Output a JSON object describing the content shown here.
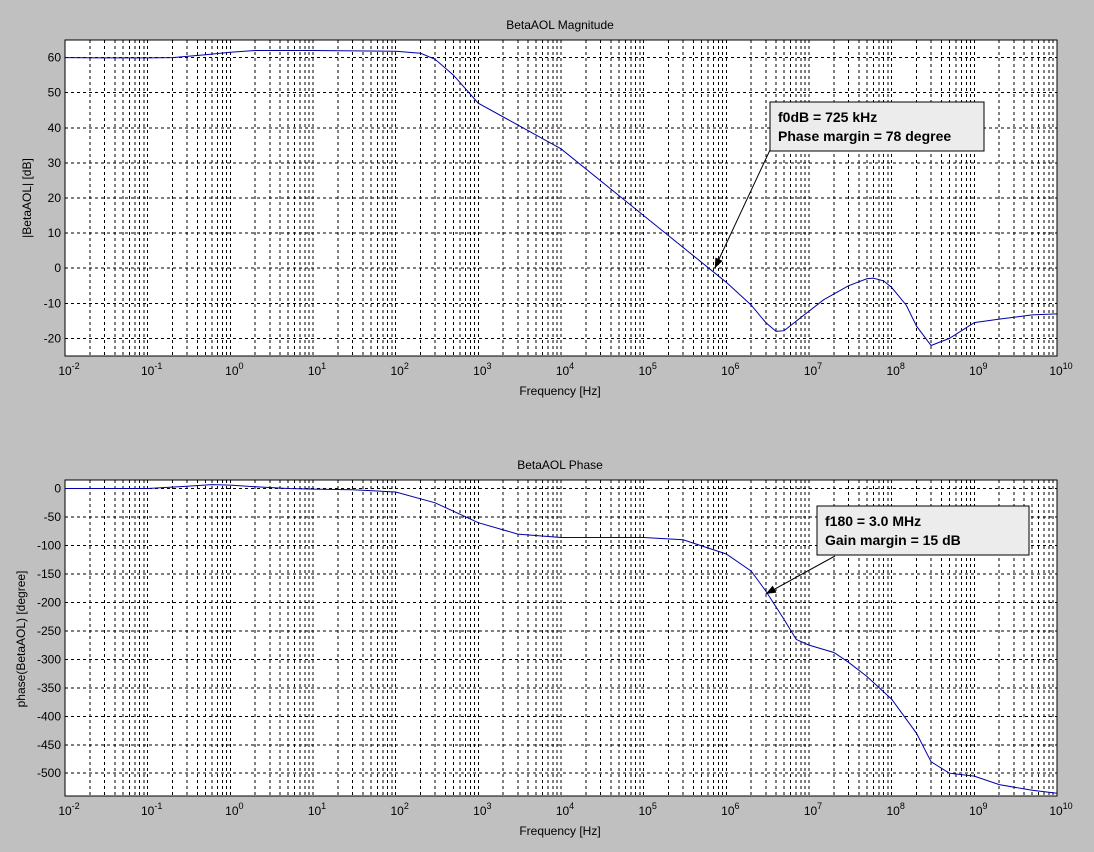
{
  "figure": {
    "background": "#c0c0c0",
    "line_color": "#0000aa"
  },
  "chart_data": [
    {
      "type": "line",
      "title": "BetaAOL Magnitude",
      "xlabel": "Frequency [Hz]",
      "ylabel": "|BetaAOL| [dB]",
      "xscale": "log",
      "xlim": [
        0.01,
        10000000000
      ],
      "ylim": [
        -25,
        65
      ],
      "grid": true,
      "yticks": [
        60,
        50,
        40,
        30,
        20,
        10,
        0,
        -10,
        -20
      ],
      "xticks": [
        {
          "base": "10",
          "exp": "-2"
        },
        {
          "base": "10",
          "exp": "-1"
        },
        {
          "base": "10",
          "exp": "0"
        },
        {
          "base": "10",
          "exp": "1"
        },
        {
          "base": "10",
          "exp": "2"
        },
        {
          "base": "10",
          "exp": "3"
        },
        {
          "base": "10",
          "exp": "4"
        },
        {
          "base": "10",
          "exp": "5"
        },
        {
          "base": "10",
          "exp": "6"
        },
        {
          "base": "10",
          "exp": "7"
        },
        {
          "base": "10",
          "exp": "8"
        },
        {
          "base": "10",
          "exp": "9"
        },
        {
          "base": "10",
          "exp": "10"
        }
      ],
      "x": [
        0.01,
        0.03,
        0.1,
        0.2,
        0.5,
        1,
        2,
        5,
        10,
        100,
        200,
        300,
        500,
        1000,
        10000,
        100000,
        1000000,
        2000000,
        3000000,
        4000000,
        5000000,
        8000000,
        15000000,
        30000000,
        50000000,
        60000000,
        80000000,
        100000000,
        150000000,
        200000000,
        300000000,
        500000000,
        1000000000,
        2000000000,
        5000000000,
        10000000000
      ],
      "series": [
        {
          "values": [
            60,
            59.9,
            59.9,
            60,
            60.8,
            61.5,
            62,
            62,
            62,
            61.8,
            61.2,
            59.5,
            55,
            47,
            34,
            15,
            -4,
            -10.5,
            -15.5,
            -18,
            -17.8,
            -14,
            -9,
            -5,
            -3,
            -2.8,
            -3.6,
            -5.5,
            -10.5,
            -16.5,
            -22,
            -20,
            -15.5,
            -14.5,
            -13.3,
            -13
          ]
        }
      ],
      "annotation": {
        "lines": [
          "f0dB = 725 kHz",
          "Phase margin = 78 degree"
        ],
        "point": {
          "x": 725000,
          "y": 0
        }
      }
    },
    {
      "type": "line",
      "title": "BetaAOL Phase",
      "xlabel": "Frequency [Hz]",
      "ylabel": "phase(BetaAOL) [degree]",
      "xscale": "log",
      "xlim": [
        0.01,
        10000000000
      ],
      "ylim": [
        -540,
        15
      ],
      "grid": true,
      "yticks": [
        0,
        -50,
        -100,
        -150,
        -200,
        -250,
        -300,
        -350,
        -400,
        -450,
        -500
      ],
      "xticks": [
        {
          "base": "10",
          "exp": "-2"
        },
        {
          "base": "10",
          "exp": "-1"
        },
        {
          "base": "10",
          "exp": "0"
        },
        {
          "base": "10",
          "exp": "1"
        },
        {
          "base": "10",
          "exp": "2"
        },
        {
          "base": "10",
          "exp": "3"
        },
        {
          "base": "10",
          "exp": "4"
        },
        {
          "base": "10",
          "exp": "5"
        },
        {
          "base": "10",
          "exp": "6"
        },
        {
          "base": "10",
          "exp": "7"
        },
        {
          "base": "10",
          "exp": "8"
        },
        {
          "base": "10",
          "exp": "9"
        },
        {
          "base": "10",
          "exp": "10"
        }
      ],
      "x": [
        0.01,
        0.03,
        0.1,
        0.3,
        0.6,
        1,
        2,
        5,
        10,
        30,
        100,
        300,
        1000,
        3000,
        10000,
        100000,
        300000,
        1000000,
        2000000,
        3000000,
        5000000,
        7000000,
        10000000,
        20000000,
        30000000,
        50000000,
        100000000,
        200000000,
        300000000,
        500000000,
        1000000000,
        2000000000,
        5000000000,
        10000000000
      ],
      "series": [
        {
          "values": [
            0,
            0,
            0,
            4,
            7,
            6,
            3,
            0,
            -1,
            -2,
            -6,
            -25,
            -60,
            -80,
            -86,
            -86,
            -90,
            -115,
            -145,
            -180,
            -230,
            -265,
            -275,
            -288,
            -305,
            -330,
            -370,
            -430,
            -480,
            -500,
            -505,
            -520,
            -530,
            -535
          ]
        }
      ],
      "annotation": {
        "lines": [
          "f180 = 3.0 MHz",
          "Gain margin = 15 dB"
        ],
        "point": {
          "x": 3000000,
          "y": -185
        }
      }
    }
  ]
}
